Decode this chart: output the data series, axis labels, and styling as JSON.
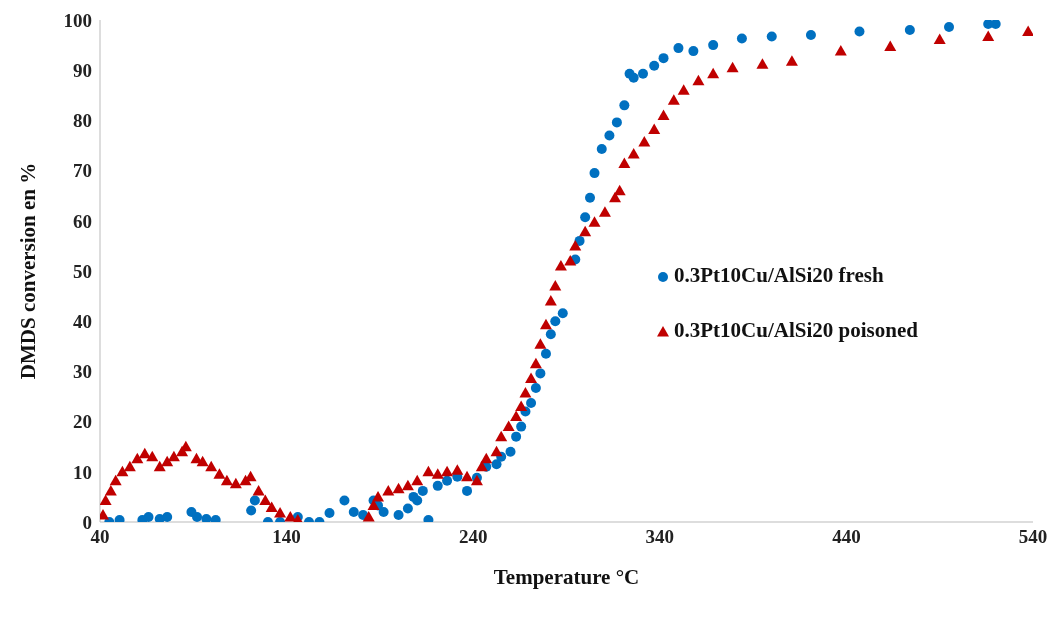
{
  "chart_data": {
    "type": "scatter",
    "xlabel": "Temperature °C",
    "ylabel": "DMDS conversion en %",
    "xlim": [
      40,
      540
    ],
    "xticks": [
      40,
      140,
      240,
      340,
      440,
      540
    ],
    "ylim": [
      0,
      100
    ],
    "yticks": [
      0,
      10,
      20,
      30,
      40,
      50,
      60,
      70,
      80,
      90,
      100
    ],
    "grid": false,
    "legend": "right",
    "series": [
      {
        "name": "0.3Pt10Cu/AlSi20 fresh",
        "color": "#0070c0",
        "marker": "circle",
        "x": [
          45,
          50.5,
          62.7,
          66,
          72,
          76,
          89,
          92,
          97,
          102,
          121,
          123,
          130,
          136.5,
          146,
          152,
          157.6,
          163,
          171,
          176,
          181,
          186.6,
          189,
          192,
          200,
          205,
          208,
          210,
          213,
          216,
          221,
          226,
          231.5,
          236.7,
          242,
          247,
          252.5,
          255,
          260,
          263,
          265.7,
          268,
          271,
          273.6,
          276,
          279,
          281.6,
          284,
          288,
          294.7,
          297,
          300,
          302.6,
          305,
          308.9,
          313,
          317,
          321,
          323.8,
          326,
          331,
          337,
          342,
          350,
          358,
          368.6,
          384,
          400,
          421,
          447,
          474,
          495,
          516,
          520
        ],
        "values": [
          0,
          0.4,
          0.4,
          1,
          0.6,
          1,
          2,
          1,
          0.6,
          0.4,
          2.3,
          4.3,
          0,
          0,
          1,
          0,
          0,
          1.8,
          4.3,
          2,
          1.4,
          4.3,
          3.3,
          2,
          1.4,
          2.7,
          5,
          4.3,
          6.2,
          0.4,
          7.2,
          8.2,
          9,
          6.2,
          8.8,
          11,
          11.5,
          13,
          14,
          17,
          19,
          22,
          23.7,
          26.7,
          29.6,
          33.5,
          37.4,
          40,
          41.6,
          52.3,
          56,
          60.7,
          64.6,
          69.5,
          74.3,
          77,
          79.6,
          83,
          89.3,
          88.5,
          89.3,
          90.9,
          92.4,
          94.4,
          93.8,
          95,
          96.3,
          96.7,
          97,
          97.7,
          98,
          98.6,
          99.2,
          99.2
        ]
      },
      {
        "name": "0.3Pt10Cu/AlSi20 poisoned",
        "color": "#c00000",
        "marker": "triangle",
        "x": [
          41.6,
          43,
          45.8,
          48.4,
          52,
          56,
          60,
          64,
          68,
          72,
          76,
          79.6,
          84,
          86,
          91.7,
          95,
          99.6,
          104,
          108,
          112.8,
          118,
          120.7,
          125,
          128.6,
          132,
          136.5,
          142,
          146,
          184,
          186.6,
          189,
          194.5,
          200,
          205,
          210,
          216,
          221,
          226,
          231.5,
          236.7,
          242,
          244.6,
          247,
          252.5,
          255,
          259,
          263,
          265.7,
          268,
          271,
          273.6,
          276,
          279,
          281.6,
          284,
          287,
          292,
          294.7,
          300,
          305,
          310.6,
          316,
          318.5,
          321,
          326,
          331.7,
          337,
          342,
          347.5,
          352.8,
          360.7,
          368.6,
          379,
          395,
          410.8,
          437,
          463.5,
          490,
          516,
          537.4
        ],
        "values": [
          1.4,
          4.3,
          6.2,
          8.2,
          10,
          11,
          12.6,
          13.6,
          13,
          11,
          12,
          13,
          14,
          15,
          12.6,
          12,
          11,
          9.5,
          8.2,
          7.6,
          8.2,
          9,
          6.2,
          4.3,
          2.9,
          1.8,
          1,
          0.4,
          1,
          3.3,
          5,
          6.2,
          6.6,
          7.2,
          8.2,
          10,
          9.5,
          10,
          10.3,
          9,
          8.2,
          11,
          12.6,
          14,
          17,
          19,
          21,
          23,
          25.7,
          28.6,
          31.5,
          35.4,
          39.3,
          44,
          47,
          51,
          52,
          55,
          57.8,
          59.7,
          61.7,
          64.6,
          66,
          71.4,
          73.3,
          75.7,
          78.2,
          81,
          84,
          86,
          87.9,
          89.3,
          90.5,
          91.2,
          91.8,
          93.8,
          94.7,
          96.1,
          96.7,
          97.7
        ]
      }
    ]
  }
}
